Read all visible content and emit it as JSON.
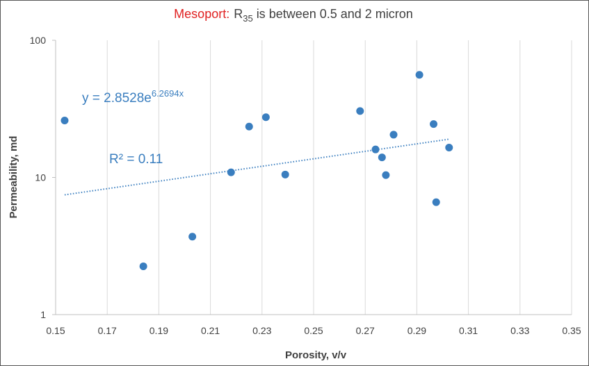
{
  "chart_data": {
    "type": "scatter",
    "title_highlight": "Mesoport:",
    "title_r": "R",
    "title_subscript": "35",
    "title_rest": "is between 0.5 and 2 micron",
    "xlabel": "Porosity, v/v",
    "ylabel": "Permeability, md",
    "xlim": [
      0.15,
      0.35
    ],
    "ylim": [
      1,
      100
    ],
    "y_scale": "log",
    "x_ticks": [
      "0.15",
      "0.17",
      "0.19",
      "0.21",
      "0.23",
      "0.25",
      "0.27",
      "0.29",
      "0.31",
      "0.33",
      "0.35"
    ],
    "y_ticks": [
      "1",
      "10",
      "100"
    ],
    "grid": "vertical",
    "points": [
      {
        "x": 0.1535,
        "y": 26
      },
      {
        "x": 0.184,
        "y": 2.25
      },
      {
        "x": 0.203,
        "y": 3.7
      },
      {
        "x": 0.218,
        "y": 10.9
      },
      {
        "x": 0.225,
        "y": 23.5
      },
      {
        "x": 0.2315,
        "y": 27.5
      },
      {
        "x": 0.239,
        "y": 10.5
      },
      {
        "x": 0.268,
        "y": 30.5
      },
      {
        "x": 0.274,
        "y": 16.0
      },
      {
        "x": 0.2765,
        "y": 14.0
      },
      {
        "x": 0.278,
        "y": 10.4
      },
      {
        "x": 0.281,
        "y": 20.5
      },
      {
        "x": 0.291,
        "y": 56.0
      },
      {
        "x": 0.2965,
        "y": 24.5
      },
      {
        "x": 0.2975,
        "y": 6.6
      },
      {
        "x": 0.3025,
        "y": 16.5
      }
    ],
    "trendline": {
      "a": 2.8528,
      "b": 6.2694,
      "x_start": 0.1535,
      "x_end": 0.3025
    },
    "equation_base": "y = 2.8528e",
    "equation_exponent": "6.2694x",
    "r_squared": "R² = 0.11",
    "colors": {
      "points": "#3a7ebf",
      "trendline": "#3a7ebf",
      "title_highlight": "#e02020",
      "text": "#404040",
      "grid": "#d9d9d9"
    }
  }
}
